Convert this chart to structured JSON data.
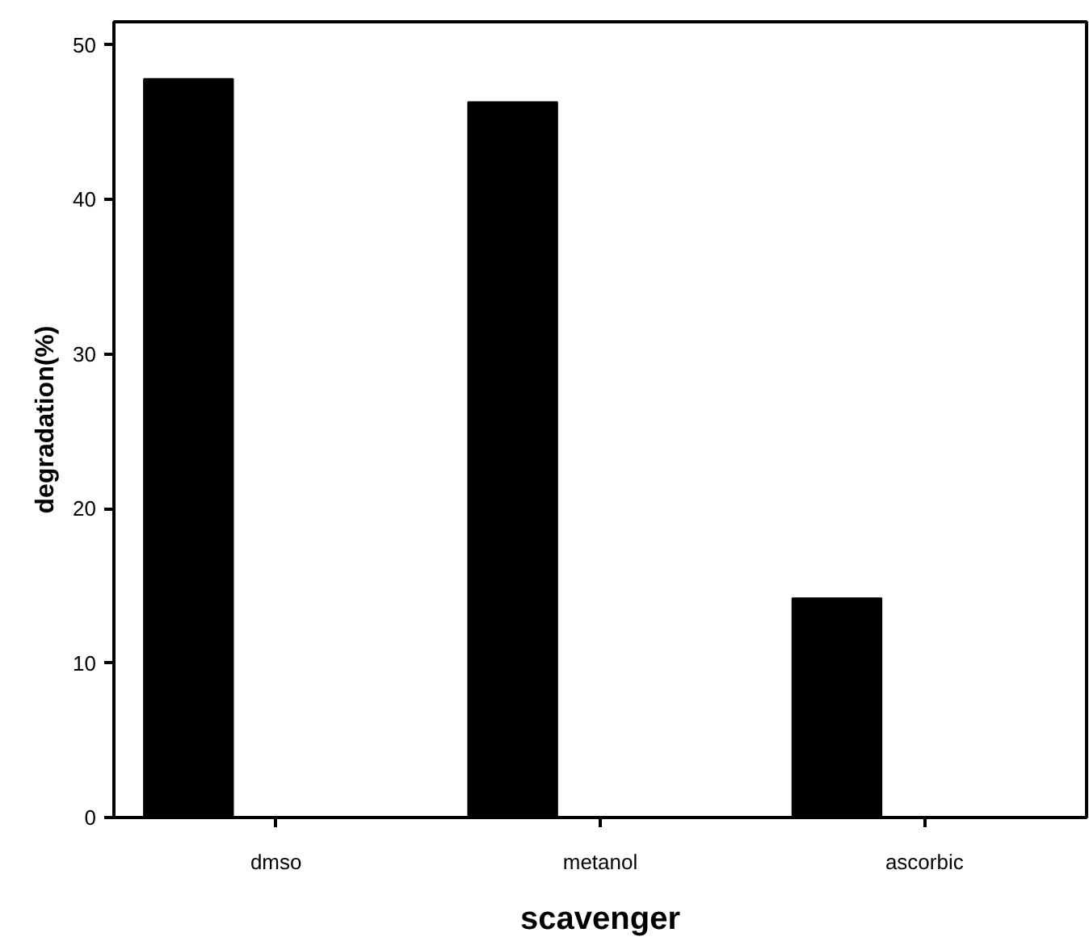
{
  "chart_data": {
    "type": "bar",
    "xlabel": "scavenger",
    "ylabel": "degradation(%)",
    "categories": [
      "dmso",
      "metanol",
      "ascorbic"
    ],
    "series": [
      {
        "color": "#000000",
        "values": [
          47.8,
          46.3,
          14.2
        ]
      }
    ],
    "ylim": [
      0,
      51.5
    ],
    "yticks": [
      0,
      10,
      20,
      30,
      40,
      50
    ],
    "grid": false
  }
}
